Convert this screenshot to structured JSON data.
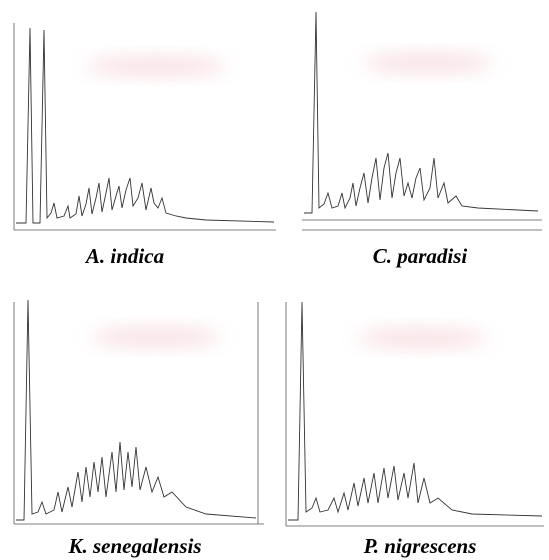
{
  "figure": {
    "panels": [
      {
        "caption": "A. indica"
      },
      {
        "caption": "C. paradisi"
      },
      {
        "caption": "K. senegalensis"
      },
      {
        "caption": "P. nigrescens"
      }
    ]
  }
}
